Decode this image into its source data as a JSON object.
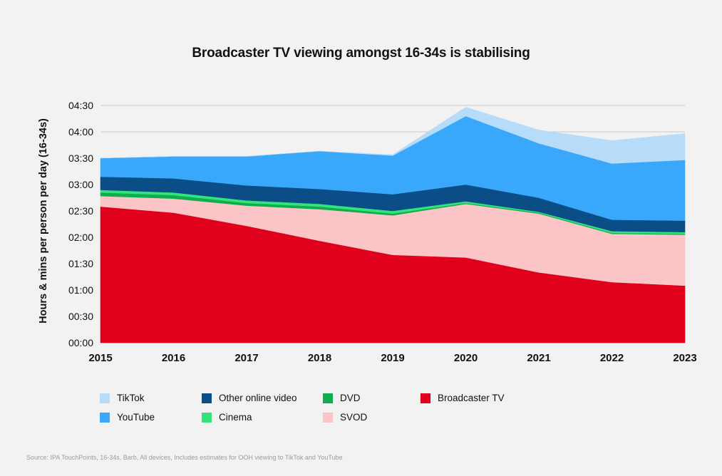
{
  "chart_data": {
    "type": "area",
    "stacked": true,
    "title": "Broadcaster TV viewing amongst 16-34s is stabilising",
    "xlabel": "",
    "ylabel": "Hours & mins per person per day (16-34s)",
    "x": [
      "2015",
      "2016",
      "2017",
      "2018",
      "2019",
      "2020",
      "2021",
      "2022",
      "2023"
    ],
    "y_ticks": [
      "00:00",
      "00:30",
      "01:00",
      "01:30",
      "02:00",
      "02:30",
      "03:00",
      "03:30",
      "04:00",
      "04:30"
    ],
    "ylim_minutes": [
      0,
      270
    ],
    "y_unit": "minutes per person per day",
    "grid": true,
    "legend_position": "bottom",
    "series": [
      {
        "name": "Broadcaster TV",
        "color": "#e0001b",
        "values": [
          155,
          148,
          133,
          116,
          100,
          97,
          80,
          69,
          65
        ]
      },
      {
        "name": "SVOD",
        "color": "#fbc4c6",
        "values": [
          12,
          16,
          23,
          36,
          45,
          61,
          67,
          55,
          58
        ]
      },
      {
        "name": "DVD",
        "color": "#0fad4e",
        "values": [
          4,
          4,
          3,
          3,
          2,
          1,
          1,
          1,
          1
        ]
      },
      {
        "name": "Cinema",
        "color": "#34e37a",
        "values": [
          3,
          3,
          3,
          3,
          3,
          2,
          1,
          2,
          2
        ]
      },
      {
        "name": "Other online video",
        "color": "#0a4d87",
        "values": [
          15,
          16,
          17,
          17,
          19,
          19,
          16,
          13,
          13
        ]
      },
      {
        "name": "YouTube",
        "color": "#3aa8fa",
        "values": [
          21,
          25,
          33,
          43,
          44,
          78,
          62,
          64,
          69
        ]
      },
      {
        "name": "TikTok",
        "color": "#b7dcfa",
        "values": [
          0,
          0,
          0,
          0,
          1,
          10,
          15,
          26,
          30
        ]
      }
    ]
  },
  "legend": [
    [
      {
        "label": "TikTok",
        "color": "#b7dcfa"
      },
      {
        "label": "Other online video",
        "color": "#0a4d87"
      },
      {
        "label": "DVD",
        "color": "#0fad4e"
      },
      {
        "label": "Broadcaster TV",
        "color": "#e0001b"
      }
    ],
    [
      {
        "label": "YouTube",
        "color": "#3aa8fa"
      },
      {
        "label": "Cinema",
        "color": "#34e37a"
      },
      {
        "label": "SVOD",
        "color": "#fbc4c6"
      }
    ]
  ],
  "source": "Source: IPA TouchPoints, 16-34s, Barb, All devices, Includes estimates for OOH viewing to TikTok and YouTube"
}
